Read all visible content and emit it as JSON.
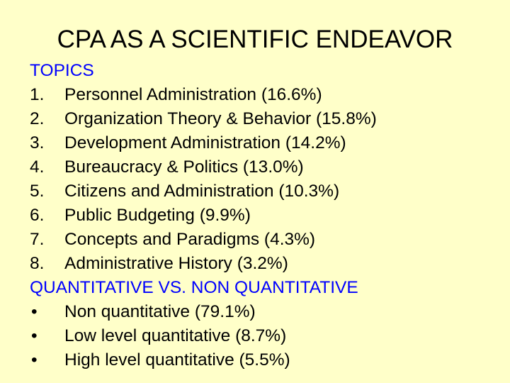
{
  "slide": {
    "title": "CPA AS A SCIENTIFIC ENDEAVOR",
    "sections": [
      {
        "heading": "TOPICS",
        "items": [
          {
            "marker": "1.",
            "text": "Personnel Administration (16.6%)"
          },
          {
            "marker": "2.",
            "text": "Organization Theory & Behavior (15.8%)"
          },
          {
            "marker": "3.",
            "text": "Development Administration (14.2%)"
          },
          {
            "marker": "4.",
            "text": "Bureaucracy & Politics (13.0%)"
          },
          {
            "marker": "5.",
            "text": "Citizens and Administration (10.3%)"
          },
          {
            "marker": "6.",
            "text": "Public Budgeting (9.9%)"
          },
          {
            "marker": "7.",
            "text": "Concepts and Paradigms (4.3%)"
          },
          {
            "marker": "8.",
            "text": "Administrative History (3.2%)"
          }
        ]
      },
      {
        "heading": "QUANTITATIVE VS. NON QUANTITATIVE",
        "items": [
          {
            "marker": "•",
            "text": "Non quantitative (79.1%)"
          },
          {
            "marker": "•",
            "text": "Low level quantitative (8.7%)"
          },
          {
            "marker": "•",
            "text": "High level quantitative (5.5%)"
          }
        ]
      }
    ]
  },
  "colors": {
    "background": "#ffffc9",
    "heading": "#0000ff",
    "text": "#000000"
  }
}
